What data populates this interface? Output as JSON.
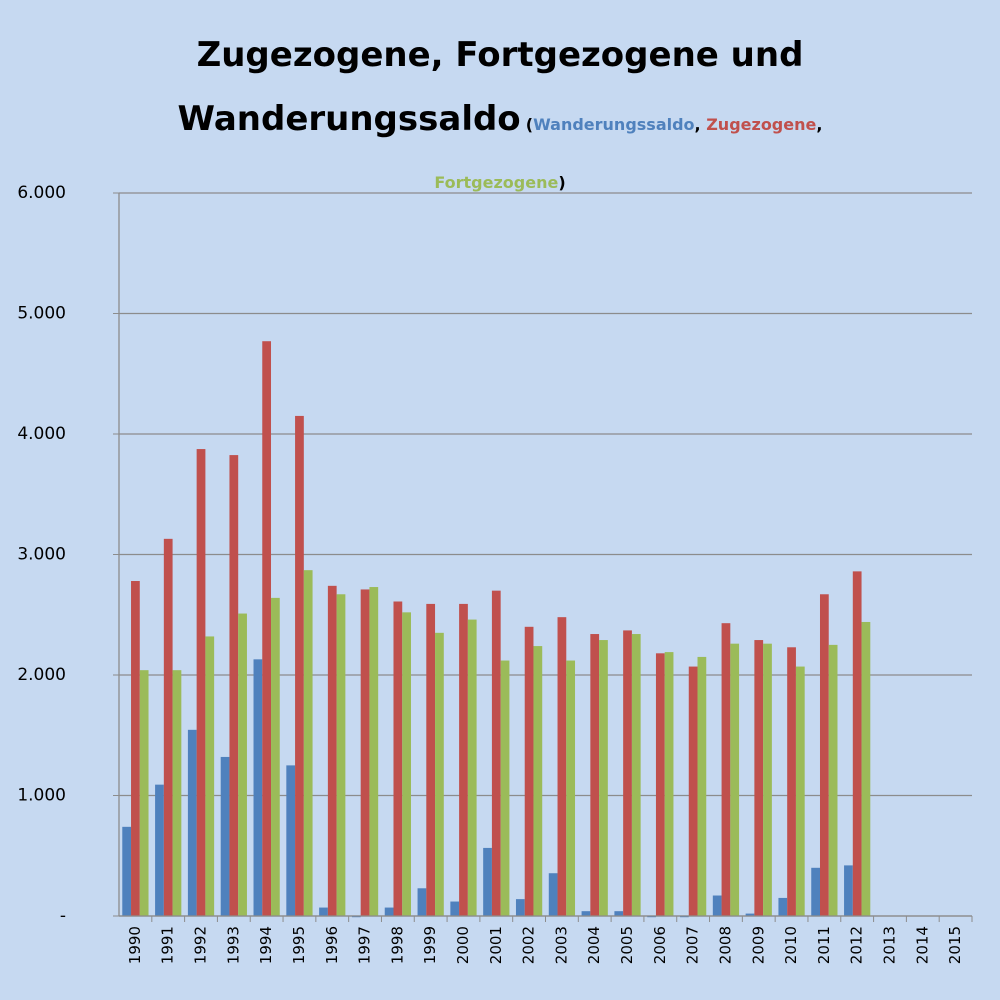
{
  "chart_data": {
    "type": "bar",
    "title": "Zugezogene, Fortgezogene und Wanderungssaldo",
    "subtitle": "(Wanderungssaldo,  Zugezogene, Fortgezogene)",
    "categories": [
      "1990",
      "1991",
      "1992",
      "1993",
      "1994",
      "1995",
      "1996",
      "1997",
      "1998",
      "1999",
      "2000",
      "2001",
      "2002",
      "2003",
      "2004",
      "2005",
      "2006",
      "2007",
      "2008",
      "2009",
      "2010",
      "2011",
      "2012",
      "2013",
      "2014",
      "2015"
    ],
    "series": [
      {
        "name": "Wanderungssaldo",
        "color": "#4f81bd",
        "values": [
          740,
          1090,
          1545,
          1320,
          2130,
          1250,
          70,
          -10,
          70,
          230,
          120,
          565,
          140,
          355,
          40,
          40,
          -10,
          -10,
          170,
          20,
          150,
          400,
          420,
          null,
          null,
          null
        ]
      },
      {
        "name": "Zugezogene",
        "color": "#c0504d",
        "values": [
          2780,
          3130,
          3875,
          3825,
          4770,
          4150,
          2740,
          2710,
          2610,
          2590,
          2590,
          2700,
          2400,
          2480,
          2340,
          2370,
          2180,
          2070,
          2430,
          2290,
          2230,
          2670,
          2860,
          null,
          null,
          null
        ]
      },
      {
        "name": "Fortgezogene",
        "color": "#9bbb59",
        "values": [
          2040,
          2040,
          2320,
          2510,
          2640,
          2870,
          2670,
          2730,
          2520,
          2350,
          2460,
          2120,
          2240,
          2120,
          2290,
          2340,
          2190,
          2150,
          2260,
          2260,
          2070,
          2250,
          2440,
          null,
          null,
          null
        ]
      }
    ],
    "ylim": [
      0,
      6000
    ],
    "yticks": [
      {
        "value": 0,
        "label": "-"
      },
      {
        "value": 1000,
        "label": "1.000"
      },
      {
        "value": 2000,
        "label": "2.000"
      },
      {
        "value": 3000,
        "label": "3.000"
      },
      {
        "value": 4000,
        "label": "4.000"
      },
      {
        "value": 5000,
        "label": "5.000"
      },
      {
        "value": 6000,
        "label": "6.000"
      }
    ],
    "grid": true
  }
}
